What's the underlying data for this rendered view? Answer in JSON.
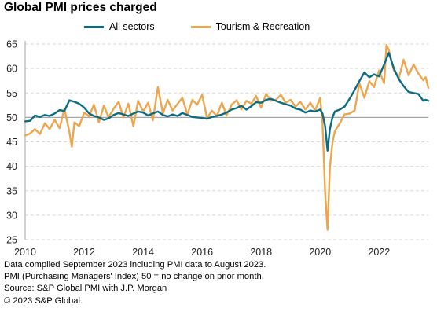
{
  "title": "Global PMI prices charged",
  "colors": {
    "all_sectors": "#0b6c83",
    "tourism": "#eda64e",
    "grid": "#d9d9d9",
    "reference": "#a6a6a6"
  },
  "legend": [
    "All sectors",
    "Tourism & Recreation"
  ],
  "footnotes": [
    "Data compiled September 2023 including PMI data to August 2023.",
    "PMI (Purchasing Managers' Index) 50 = no change on prior month.",
    "Source: S&P Global PMI with J.P. Morgan",
    "© 2023 S&P Global."
  ],
  "chart_data": {
    "type": "line",
    "title": "Global PMI prices charged",
    "xlim": [
      2010,
      2023.67
    ],
    "ylim": [
      25,
      65
    ],
    "x_ticks": [
      2010,
      2012,
      2014,
      2016,
      2018,
      2020,
      2022
    ],
    "y_ticks": [
      25,
      30,
      35,
      40,
      45,
      50,
      55,
      60,
      65
    ],
    "reference_line": 50,
    "grid": "horizontal dashed",
    "legend_position": "top",
    "series": [
      {
        "name": "All sectors",
        "points": [
          [
            2010.0,
            49.2
          ],
          [
            2010.17,
            49.3
          ],
          [
            2010.33,
            50.4
          ],
          [
            2010.5,
            50.1
          ],
          [
            2010.67,
            50.5
          ],
          [
            2010.83,
            50.3
          ],
          [
            2011.0,
            50.8
          ],
          [
            2011.17,
            51.5
          ],
          [
            2011.33,
            51.3
          ],
          [
            2011.5,
            53.5
          ],
          [
            2011.67,
            53.2
          ],
          [
            2011.83,
            52.8
          ],
          [
            2012.0,
            52.0
          ],
          [
            2012.17,
            50.8
          ],
          [
            2012.33,
            50.3
          ],
          [
            2012.5,
            50.0
          ],
          [
            2012.67,
            49.5
          ],
          [
            2012.83,
            49.8
          ],
          [
            2013.0,
            50.5
          ],
          [
            2013.17,
            50.9
          ],
          [
            2013.33,
            50.6
          ],
          [
            2013.5,
            50.3
          ],
          [
            2013.67,
            50.8
          ],
          [
            2013.83,
            51.2
          ],
          [
            2014.0,
            51.0
          ],
          [
            2014.17,
            50.4
          ],
          [
            2014.33,
            50.8
          ],
          [
            2014.5,
            51.2
          ],
          [
            2014.67,
            50.5
          ],
          [
            2014.83,
            50.2
          ],
          [
            2015.0,
            50.6
          ],
          [
            2015.17,
            50.3
          ],
          [
            2015.33,
            50.9
          ],
          [
            2015.5,
            50.5
          ],
          [
            2015.67,
            50.1
          ],
          [
            2015.83,
            50.0
          ],
          [
            2016.0,
            49.9
          ],
          [
            2016.17,
            49.7
          ],
          [
            2016.33,
            50.1
          ],
          [
            2016.5,
            50.3
          ],
          [
            2016.67,
            50.6
          ],
          [
            2016.83,
            51.0
          ],
          [
            2017.0,
            51.6
          ],
          [
            2017.17,
            51.9
          ],
          [
            2017.33,
            52.4
          ],
          [
            2017.5,
            51.6
          ],
          [
            2017.67,
            52.3
          ],
          [
            2017.83,
            53.1
          ],
          [
            2018.0,
            53.0
          ],
          [
            2018.17,
            53.6
          ],
          [
            2018.33,
            53.8
          ],
          [
            2018.5,
            53.4
          ],
          [
            2018.67,
            53.0
          ],
          [
            2018.83,
            52.7
          ],
          [
            2019.0,
            52.4
          ],
          [
            2019.17,
            51.8
          ],
          [
            2019.33,
            51.6
          ],
          [
            2019.5,
            51.0
          ],
          [
            2019.67,
            51.4
          ],
          [
            2019.83,
            51.2
          ],
          [
            2020.0,
            51.6
          ],
          [
            2020.08,
            50.8
          ],
          [
            2020.17,
            48.2
          ],
          [
            2020.25,
            43.2
          ],
          [
            2020.33,
            47.6
          ],
          [
            2020.42,
            50.0
          ],
          [
            2020.5,
            51.2
          ],
          [
            2020.67,
            51.6
          ],
          [
            2020.83,
            52.2
          ],
          [
            2021.0,
            53.8
          ],
          [
            2021.17,
            55.6
          ],
          [
            2021.33,
            57.4
          ],
          [
            2021.5,
            59.2
          ],
          [
            2021.67,
            58.2
          ],
          [
            2021.83,
            58.8
          ],
          [
            2022.0,
            58.4
          ],
          [
            2022.17,
            60.8
          ],
          [
            2022.33,
            63.2
          ],
          [
            2022.5,
            60.0
          ],
          [
            2022.67,
            57.8
          ],
          [
            2022.83,
            56.4
          ],
          [
            2023.0,
            55.2
          ],
          [
            2023.17,
            55.0
          ],
          [
            2023.33,
            54.8
          ],
          [
            2023.5,
            53.4
          ],
          [
            2023.58,
            53.6
          ],
          [
            2023.67,
            53.4
          ]
        ]
      },
      {
        "name": "Tourism & Recreation",
        "points": [
          [
            2010.0,
            46.3
          ],
          [
            2010.17,
            46.7
          ],
          [
            2010.33,
            47.6
          ],
          [
            2010.5,
            46.6
          ],
          [
            2010.67,
            48.8
          ],
          [
            2010.83,
            47.6
          ],
          [
            2011.0,
            49.5
          ],
          [
            2011.17,
            47.8
          ],
          [
            2011.33,
            51.8
          ],
          [
            2011.5,
            47.0
          ],
          [
            2011.58,
            44.0
          ],
          [
            2011.67,
            49.0
          ],
          [
            2011.83,
            48.2
          ],
          [
            2012.0,
            51.0
          ],
          [
            2012.17,
            50.2
          ],
          [
            2012.33,
            52.6
          ],
          [
            2012.5,
            49.0
          ],
          [
            2012.67,
            52.4
          ],
          [
            2012.83,
            50.0
          ],
          [
            2013.0,
            51.8
          ],
          [
            2013.17,
            53.2
          ],
          [
            2013.33,
            50.0
          ],
          [
            2013.5,
            52.8
          ],
          [
            2013.67,
            48.2
          ],
          [
            2013.83,
            53.4
          ],
          [
            2014.0,
            51.2
          ],
          [
            2014.17,
            53.0
          ],
          [
            2014.33,
            49.4
          ],
          [
            2014.5,
            56.2
          ],
          [
            2014.67,
            50.8
          ],
          [
            2014.83,
            53.6
          ],
          [
            2015.0,
            51.4
          ],
          [
            2015.17,
            52.8
          ],
          [
            2015.33,
            54.0
          ],
          [
            2015.5,
            50.6
          ],
          [
            2015.67,
            53.6
          ],
          [
            2015.83,
            52.6
          ],
          [
            2016.0,
            54.6
          ],
          [
            2016.17,
            49.8
          ],
          [
            2016.33,
            51.4
          ],
          [
            2016.5,
            50.3
          ],
          [
            2016.67,
            53.0
          ],
          [
            2016.83,
            50.4
          ],
          [
            2017.0,
            52.6
          ],
          [
            2017.17,
            53.5
          ],
          [
            2017.33,
            51.6
          ],
          [
            2017.5,
            53.4
          ],
          [
            2017.67,
            52.8
          ],
          [
            2017.83,
            54.4
          ],
          [
            2018.0,
            52.0
          ],
          [
            2018.17,
            54.8
          ],
          [
            2018.33,
            53.4
          ],
          [
            2018.5,
            53.6
          ],
          [
            2018.67,
            54.6
          ],
          [
            2018.83,
            53.0
          ],
          [
            2019.0,
            53.6
          ],
          [
            2019.17,
            52.2
          ],
          [
            2019.33,
            53.2
          ],
          [
            2019.5,
            51.6
          ],
          [
            2019.67,
            53.0
          ],
          [
            2019.83,
            51.4
          ],
          [
            2020.0,
            54.0
          ],
          [
            2020.08,
            49.0
          ],
          [
            2020.17,
            34.5
          ],
          [
            2020.25,
            27.0
          ],
          [
            2020.33,
            39.8
          ],
          [
            2020.42,
            44.8
          ],
          [
            2020.5,
            47.2
          ],
          [
            2020.67,
            48.8
          ],
          [
            2020.83,
            50.6
          ],
          [
            2021.0,
            50.8
          ],
          [
            2021.17,
            51.4
          ],
          [
            2021.33,
            57.0
          ],
          [
            2021.5,
            54.0
          ],
          [
            2021.67,
            57.4
          ],
          [
            2021.83,
            56.2
          ],
          [
            2022.0,
            59.6
          ],
          [
            2022.17,
            57.0
          ],
          [
            2022.25,
            64.8
          ],
          [
            2022.33,
            63.8
          ],
          [
            2022.5,
            59.6
          ],
          [
            2022.67,
            58.0
          ],
          [
            2022.83,
            61.8
          ],
          [
            2023.0,
            58.6
          ],
          [
            2023.17,
            60.8
          ],
          [
            2023.33,
            59.0
          ],
          [
            2023.5,
            57.6
          ],
          [
            2023.58,
            58.2
          ],
          [
            2023.67,
            56.0
          ]
        ]
      }
    ]
  }
}
